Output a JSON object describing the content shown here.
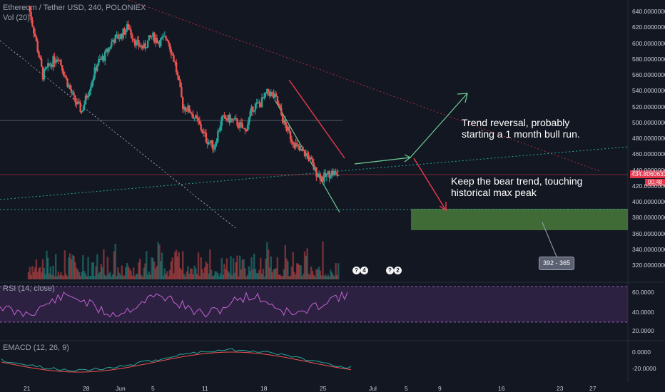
{
  "header": {
    "symbol_line": "Ethereum / Tether USD, 240, POLONIEX",
    "volume_label": "Vol (20)",
    "rsi_label": "RSI (14, close)",
    "macd_label": "EMACD (12, 26, 9)"
  },
  "colors": {
    "background": "#131722",
    "up_candle": "#26a69a",
    "down_candle": "#ef5350",
    "accent_green": "#6fcf97",
    "accent_red": "#e2364b",
    "zone_fill": "#4a7a3a",
    "rsi_band": "#7b3fa0"
  },
  "annotations": {
    "bull_note": [
      "Trend reversal, probably",
      "starting a 1 month bull run."
    ],
    "bear_note": [
      "Keep the bear trend, touching",
      "historical max peak"
    ],
    "range_label": "392 - 365"
  },
  "price_tag": {
    "value": "434.80606333",
    "countdown": "00:48"
  },
  "event_badges": [
    "?",
    "4",
    "?",
    "2"
  ],
  "chart_data": {
    "type": "candlestick",
    "title": "Ethereum / Tether USD, 240, POLONIEX",
    "price_axis": {
      "min": 305,
      "max": 645,
      "ticks": [
        "640.00000000",
        "620.00000000",
        "600.00000000",
        "580.00000000",
        "560.00000000",
        "540.00000000",
        "520.00000000",
        "500.00000000",
        "480.00000000",
        "460.00000000",
        "440.00000000",
        "420.00000000",
        "400.00000000",
        "380.00000000",
        "360.00000000",
        "340.00000000",
        "320.00000000"
      ]
    },
    "rsi_axis": {
      "ticks": [
        "60.0000",
        "40.0000",
        "20.0000"
      ]
    },
    "macd_axis": {
      "ticks": [
        "0.0000",
        "-20.0000"
      ]
    },
    "x_ticks": [
      "21",
      "28",
      "Jun",
      "5",
      "11",
      "18",
      "25",
      "Jul",
      "5",
      "9",
      "16",
      "23",
      "27"
    ],
    "daily_closes": [
      655,
      610,
      560,
      575,
      585,
      555,
      530,
      515,
      545,
      575,
      585,
      605,
      610,
      622,
      600,
      595,
      610,
      603,
      608,
      575,
      522,
      515,
      500,
      480,
      470,
      505,
      505,
      500,
      490,
      520,
      525,
      540,
      530,
      500,
      480,
      465,
      460,
      440,
      430,
      438,
      434.8
    ],
    "last_price": 434.80606333,
    "target_zone": {
      "from": 392,
      "to": 365
    }
  }
}
